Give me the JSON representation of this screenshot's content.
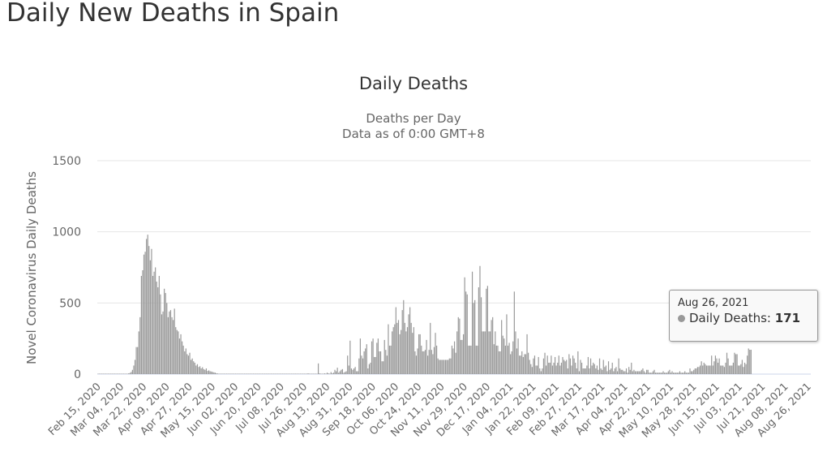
{
  "page": {
    "title": "Daily New Deaths in Spain"
  },
  "tooltip": {
    "date": "Aug 26, 2021",
    "series": "Daily Deaths",
    "value": "171"
  },
  "chart_data": {
    "type": "bar",
    "title": "Daily Deaths",
    "subtitle_lines": [
      "Deaths per Day",
      "Data as of 0:00 GMT+8"
    ],
    "xlabel": "",
    "ylabel": "Novel Coronavirus Daily Deaths",
    "ylim": [
      0,
      1500
    ],
    "yticks": [
      0,
      500,
      1000,
      1500
    ],
    "grid": true,
    "legend": "none",
    "bar_color": "#999999",
    "start_date": "2020-02-15",
    "end_date": "2021-08-26",
    "xtick_labels": [
      "Feb 15, 2020",
      "Mar 04, 2020",
      "Mar 22, 2020",
      "Apr 09, 2020",
      "Apr 27, 2020",
      "May 15, 2020",
      "Jun 02, 2020",
      "Jun 20, 2020",
      "Jul 08, 2020",
      "Jul 26, 2020",
      "Aug 13, 2020",
      "Aug 31, 2020",
      "Sep 18, 2020",
      "Oct 06, 2020",
      "Oct 24, 2020",
      "Nov 11, 2020",
      "Nov 29, 2020",
      "Dec 17, 2020",
      "Jan 04, 2021",
      "Jan 22, 2021",
      "Feb 09, 2021",
      "Feb 27, 2021",
      "Mar 17, 2021",
      "Apr 04, 2021",
      "Apr 22, 2021",
      "May 10, 2021",
      "May 28, 2021",
      "Jun 15, 2021",
      "Jul 03, 2021",
      "Jul 21, 2021",
      "Aug 08, 2021",
      "Aug 26, 2021"
    ],
    "series": [
      {
        "name": "Daily Deaths",
        "values": [
          0,
          0,
          0,
          0,
          0,
          0,
          0,
          0,
          0,
          0,
          0,
          0,
          0,
          0,
          0,
          0,
          0,
          0,
          0,
          0,
          0,
          0,
          1,
          2,
          5,
          8,
          15,
          30,
          60,
          100,
          190,
          190,
          300,
          400,
          690,
          730,
          840,
          860,
          950,
          980,
          900,
          800,
          880,
          690,
          720,
          750,
          650,
          610,
          690,
          560,
          420,
          440,
          600,
          570,
          500,
          400,
          440,
          450,
          400,
          380,
          460,
          330,
          310,
          300,
          250,
          280,
          230,
          200,
          160,
          180,
          140,
          130,
          150,
          100,
          110,
          90,
          80,
          60,
          70,
          50,
          55,
          40,
          48,
          35,
          30,
          40,
          22,
          26,
          20,
          18,
          15,
          12,
          10,
          6,
          4,
          2,
          1,
          0,
          0,
          0,
          0,
          0,
          0,
          0,
          0,
          1,
          0,
          0,
          0,
          0,
          2,
          0,
          0,
          0,
          0,
          0,
          0,
          0,
          0,
          0,
          0,
          0,
          0,
          0,
          0,
          0,
          0,
          0,
          0,
          0,
          0,
          0,
          0,
          0,
          0,
          0,
          0,
          0,
          0,
          0,
          0,
          0,
          0,
          0,
          0,
          0,
          0,
          0,
          0,
          1,
          0,
          0,
          0,
          0,
          0,
          3,
          1,
          0,
          0,
          0,
          0,
          0,
          0,
          0,
          0,
          5,
          1,
          0,
          0,
          0,
          0,
          0,
          0,
          75,
          5,
          2,
          2,
          0,
          5,
          3,
          10,
          5,
          0,
          14,
          5,
          10,
          30,
          20,
          45,
          10,
          20,
          30,
          35,
          10,
          15,
          20,
          130,
          60,
          235,
          40,
          30,
          40,
          50,
          20,
          20,
          110,
          250,
          130,
          110,
          160,
          180,
          210,
          40,
          70,
          80,
          230,
          250,
          120,
          120,
          220,
          250,
          160,
          160,
          90,
          90,
          240,
          170,
          130,
          350,
          200,
          200,
          300,
          330,
          350,
          470,
          360,
          380,
          280,
          310,
          450,
          520,
          360,
          300,
          330,
          420,
          470,
          360,
          290,
          330,
          160,
          130,
          180,
          280,
          280,
          200,
          160,
          160,
          170,
          240,
          130,
          170,
          360,
          170,
          140,
          190,
          290,
          200,
          110,
          100,
          100,
          100,
          100,
          100,
          100,
          100,
          100,
          110,
          110,
          200,
          180,
          230,
          150,
          300,
          400,
          390,
          240,
          240,
          280,
          680,
          580,
          560,
          200,
          200,
          200,
          720,
          500,
          520,
          200,
          200,
          610,
          760,
          540,
          300,
          300,
          300,
          600,
          620,
          300,
          300,
          380,
          400,
          210,
          300,
          200,
          200,
          160,
          160,
          380,
          270,
          250,
          200,
          420,
          200,
          220,
          140,
          160,
          230,
          580,
          300,
          180,
          250,
          130,
          130,
          160,
          120,
          140,
          140,
          280,
          150,
          100,
          70,
          50,
          110,
          130,
          60,
          60,
          120,
          40,
          20,
          40,
          110,
          150,
          60,
          130,
          80,
          80,
          130,
          60,
          80,
          120,
          60,
          80,
          130,
          60,
          80,
          120,
          100,
          90,
          100,
          40,
          140,
          110,
          60,
          130,
          110,
          80,
          40,
          160,
          20,
          100,
          80,
          40,
          40,
          40,
          60,
          120,
          40,
          110,
          60,
          80,
          70,
          40,
          60,
          30,
          110,
          40,
          30,
          100,
          50,
          60,
          20,
          90,
          30,
          40,
          80,
          20,
          40,
          50,
          20,
          110,
          40,
          30,
          30,
          20,
          20,
          40,
          10,
          50,
          30,
          80,
          20,
          30,
          20,
          20,
          20,
          20,
          20,
          30,
          40,
          20,
          10,
          30,
          30,
          10,
          10,
          10,
          20,
          30,
          10,
          10,
          10,
          10,
          10,
          10,
          20,
          10,
          10,
          10,
          20,
          30,
          10,
          20,
          10,
          10,
          10,
          10,
          10,
          20,
          10,
          10,
          10,
          20,
          10,
          10,
          10,
          40,
          20,
          20,
          30,
          40,
          40,
          50,
          50,
          60,
          90,
          60,
          80,
          70,
          60,
          60,
          60,
          60,
          130,
          60,
          90,
          130,
          110,
          80,
          110,
          60,
          60,
          60,
          50,
          80,
          150,
          110,
          60,
          60,
          60,
          80,
          150,
          140,
          140,
          60,
          60,
          70,
          100,
          50,
          80,
          70,
          130,
          180,
          171,
          171
        ]
      }
    ]
  }
}
